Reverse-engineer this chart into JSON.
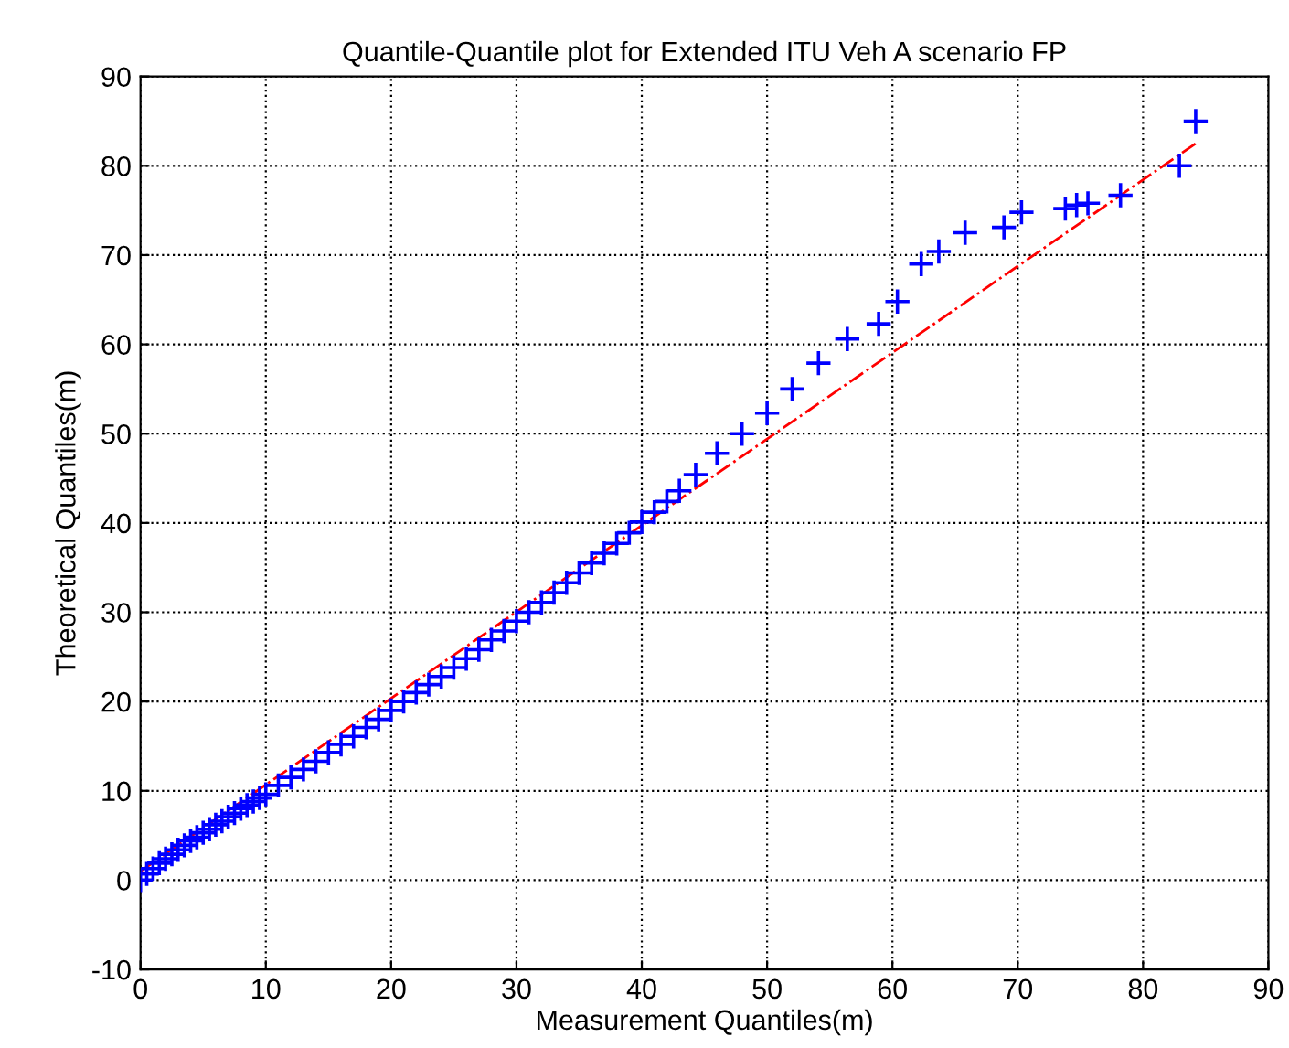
{
  "chart_data": {
    "type": "scatter",
    "title": "Quantile-Quantile plot for Extended ITU Veh A scenario FP",
    "xlabel": "Measurement Quantiles(m)",
    "ylabel": "Theoretical Quantiles(m)",
    "xlim": [
      0,
      90
    ],
    "ylim": [
      -10,
      90
    ],
    "xticks": [
      0,
      10,
      20,
      30,
      40,
      50,
      60,
      70,
      80,
      90
    ],
    "yticks": [
      -10,
      0,
      10,
      20,
      30,
      40,
      50,
      60,
      70,
      80,
      90
    ],
    "grid": true,
    "legend": false,
    "series": [
      {
        "type": "line",
        "marker": "none",
        "color": "#ff0000",
        "line_style": "dashdot",
        "x": [
          0,
          84.2
        ],
        "values": [
          1,
          82.5
        ]
      },
      {
        "color": "#0000ff",
        "marker": "cross",
        "x": [
          0,
          0.5,
          1,
          1.5,
          2,
          2.5,
          3,
          3.5,
          4,
          4.5,
          5,
          5.5,
          6,
          6.5,
          7,
          7.5,
          8,
          8.5,
          9,
          9.5,
          10,
          11,
          12,
          13,
          14,
          15,
          16,
          17,
          18,
          19,
          20,
          21,
          22,
          23,
          24,
          25,
          26,
          27,
          28,
          29,
          30,
          31,
          32,
          33,
          34,
          35,
          36,
          37,
          38,
          39,
          40,
          41,
          42,
          43,
          44.3,
          46,
          48,
          50,
          52,
          54.1,
          56.4,
          58.9,
          60.4,
          62.3,
          63.7,
          65.8,
          68.9,
          70.3,
          73.8,
          74.7,
          75.6,
          78.2,
          82.9,
          84.2
        ],
        "values": [
          0,
          0.7,
          1.3,
          1.9,
          2.4,
          2.9,
          3.4,
          3.9,
          4.4,
          4.8,
          5.3,
          5.7,
          6.2,
          6.6,
          7.1,
          7.5,
          8,
          8.4,
          8.8,
          9.2,
          9.6,
          10.6,
          11.5,
          12.4,
          13.3,
          14.3,
          15.2,
          16.1,
          17.1,
          18,
          19,
          20,
          21,
          21.9,
          22.8,
          23.8,
          24.8,
          25.8,
          26.9,
          27.9,
          29,
          30,
          31.1,
          32.2,
          33.3,
          34.4,
          35.5,
          36.6,
          37.7,
          38.9,
          40.1,
          41.2,
          42.4,
          43.6,
          45.4,
          47.8,
          50,
          52.3,
          55,
          57.9,
          60.6,
          62.3,
          64.8,
          69,
          70.4,
          72.5,
          73.1,
          74.8,
          75.2,
          75.6,
          75.8,
          76.7,
          80,
          85
        ]
      }
    ]
  }
}
